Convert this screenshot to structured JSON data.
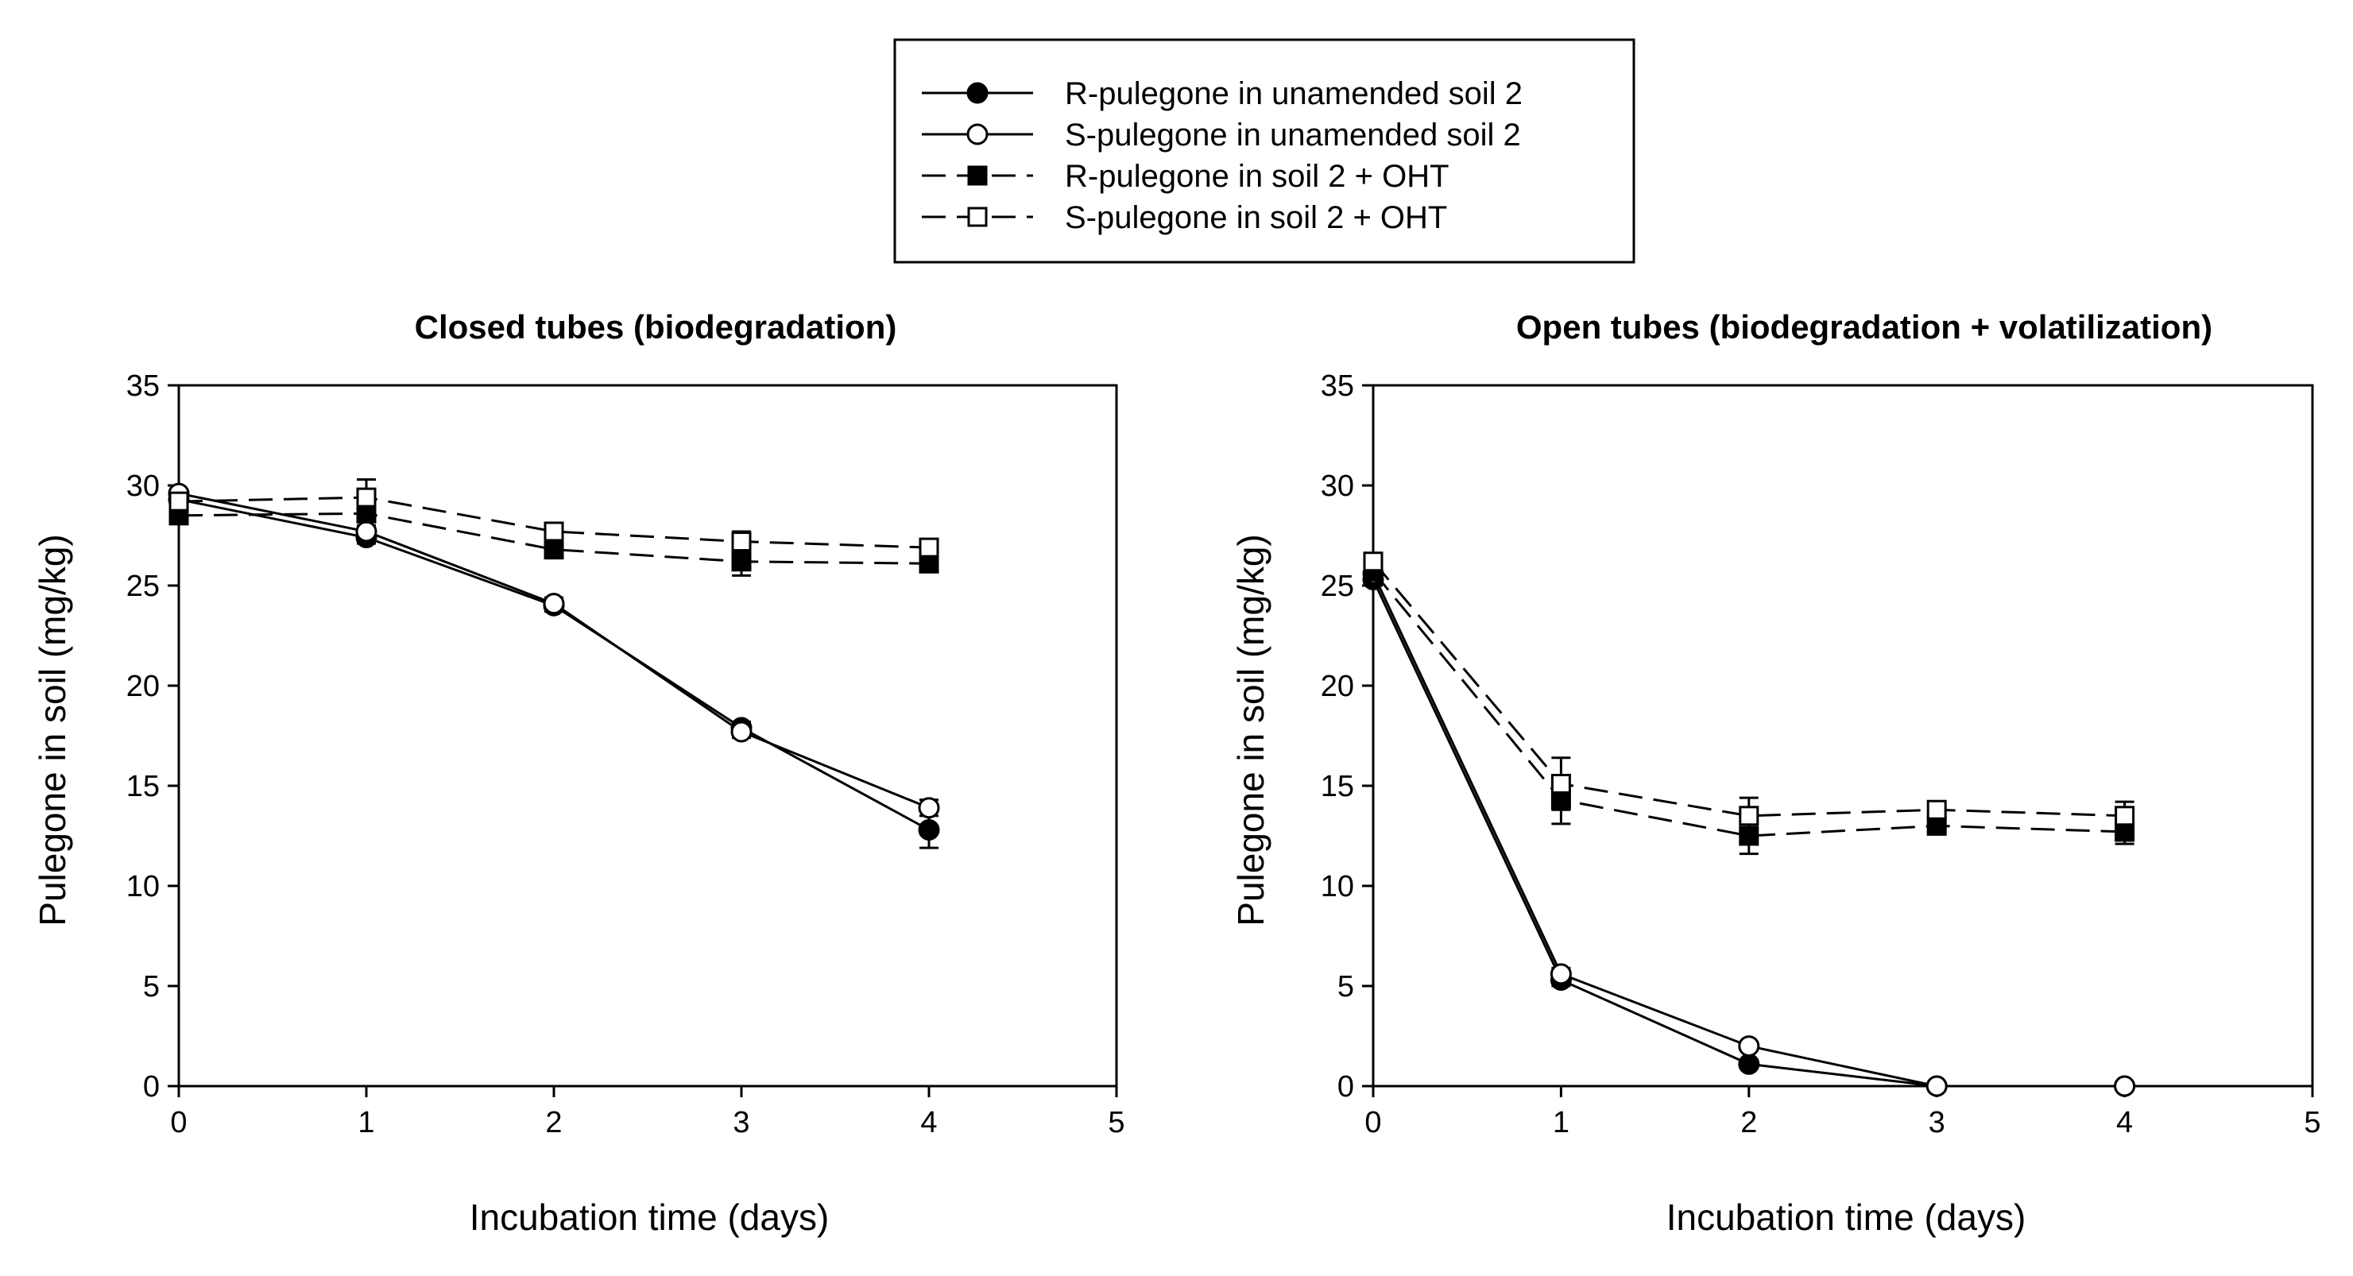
{
  "chart_data": [
    {
      "type": "line",
      "title": "Closed tubes (biodegradation)",
      "xlabel": "Incubation time (days)",
      "ylabel": "Pulegone in soil (mg/kg)",
      "xlim": [
        0,
        5
      ],
      "ylim": [
        0,
        35
      ],
      "xticks": [
        "0",
        "1",
        "2",
        "3",
        "4",
        "5"
      ],
      "yticks": [
        "0",
        "5",
        "10",
        "15",
        "20",
        "25",
        "30",
        "35"
      ],
      "x": [
        0,
        1,
        2,
        3,
        4
      ],
      "series": [
        {
          "name": "R-pulegone in unamended soil 2",
          "values": [
            29.3,
            27.4,
            24.0,
            17.9,
            12.8
          ],
          "error": [
            0.3,
            0.3,
            0.3,
            0.3,
            0.9
          ]
        },
        {
          "name": "S-pulegone in unamended soil 2",
          "values": [
            29.6,
            27.7,
            24.1,
            17.7,
            13.9
          ],
          "error": [
            0.2,
            0.3,
            0.3,
            0.3,
            0.4
          ]
        },
        {
          "name": "R-pulegone in soil 2 + OHT",
          "values": [
            28.5,
            28.6,
            26.8,
            26.2,
            26.1
          ],
          "error": [
            0.3,
            0.3,
            0.4,
            0.7,
            0.2
          ]
        },
        {
          "name": "S-pulegone in soil 2 + OHT",
          "values": [
            29.2,
            29.4,
            27.7,
            27.2,
            26.9
          ],
          "error": [
            0.3,
            0.9,
            0.4,
            0.5,
            0.3
          ]
        }
      ]
    },
    {
      "type": "line",
      "title": "Open tubes (biodegradation + volatilization)",
      "xlabel": "Incubation time (days)",
      "ylabel": "Pulegone in soil (mg/kg)",
      "xlim": [
        0,
        5
      ],
      "ylim": [
        0,
        35
      ],
      "xticks": [
        "0",
        "1",
        "2",
        "3",
        "4",
        "5"
      ],
      "yticks": [
        "0",
        "5",
        "10",
        "15",
        "20",
        "25",
        "30",
        "35"
      ],
      "x": [
        0,
        1,
        2,
        3,
        4
      ],
      "series": [
        {
          "name": "R-pulegone in unamended soil 2",
          "values": [
            25.3,
            5.3,
            1.1,
            0.0,
            0.0
          ],
          "error": [
            0.3,
            0.3,
            0.2,
            0.0,
            0.0
          ]
        },
        {
          "name": "S-pulegone in unamended soil 2",
          "values": [
            25.6,
            5.6,
            2.0,
            0.0,
            0.0
          ],
          "error": [
            0.3,
            0.3,
            0.2,
            0.0,
            0.0
          ]
        },
        {
          "name": "R-pulegone in soil 2 + OHT",
          "values": [
            25.7,
            14.3,
            12.5,
            13.0,
            12.7
          ],
          "error": [
            0.3,
            1.2,
            0.9,
            0.4,
            0.6
          ]
        },
        {
          "name": "S-pulegone in soil 2 + OHT",
          "values": [
            26.2,
            15.1,
            13.5,
            13.8,
            13.5
          ],
          "error": [
            0.3,
            1.3,
            0.9,
            0.3,
            0.7
          ]
        }
      ]
    }
  ],
  "legend": {
    "items": [
      {
        "label": "R-pulegone in unamended soil 2",
        "marker": "filled-circle",
        "line": "solid"
      },
      {
        "label": "S-pulegone in unamended soil 2",
        "marker": "open-circle",
        "line": "solid"
      },
      {
        "label": "R-pulegone in soil 2 + OHT",
        "marker": "filled-square",
        "line": "dashed"
      },
      {
        "label": "S-pulegone in soil 2 + OHT",
        "marker": "open-square",
        "line": "dashed"
      }
    ]
  },
  "colors": {
    "ink": "#000000",
    "background": "#ffffff"
  }
}
